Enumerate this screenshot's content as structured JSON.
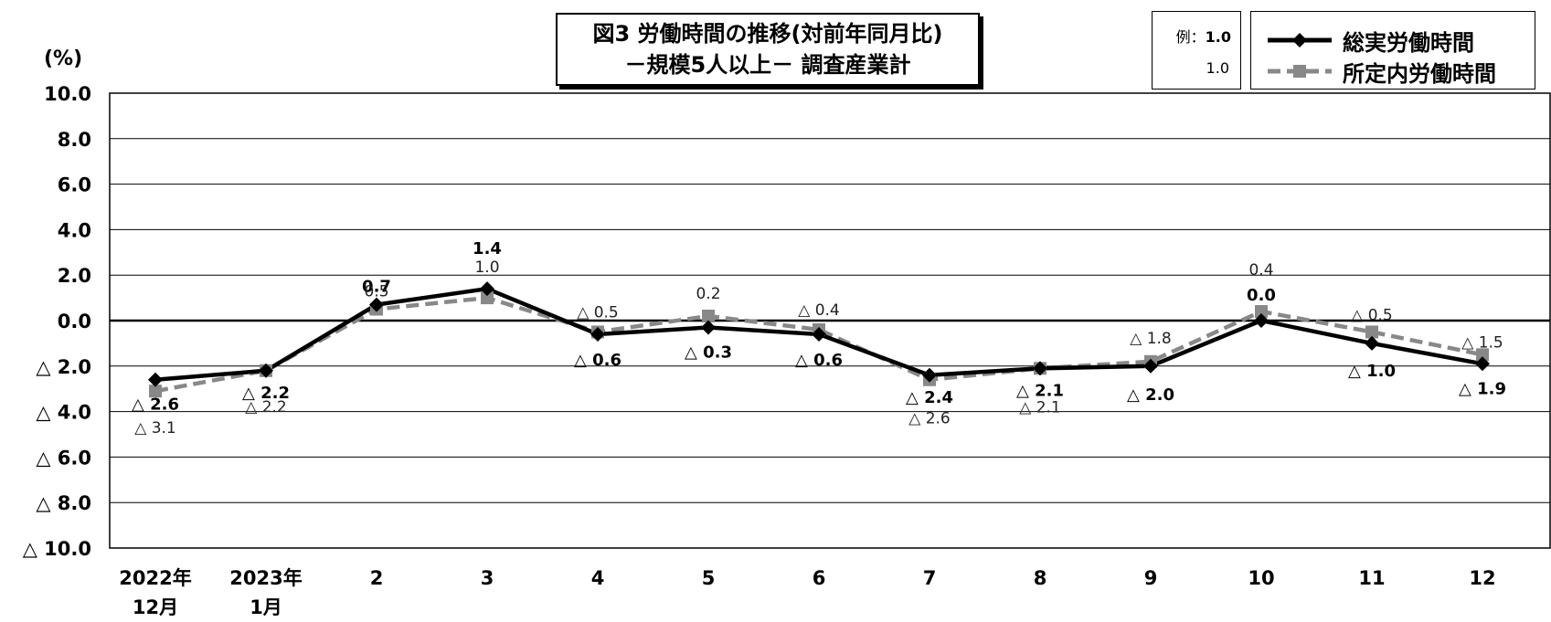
{
  "title_line1": "図3  労働時間の推移(対前年同月比)",
  "title_line2": "－規模5人以上－   調査産業計",
  "unit_label": "(%)",
  "example": {
    "label": "例：",
    "total_value": "1.0",
    "scheduled_value": "1.0"
  },
  "colors": {
    "total": "#000000",
    "scheduled": "#888888"
  },
  "chart_data": {
    "type": "line",
    "x_labels": [
      [
        "2022年",
        "12月"
      ],
      [
        "2023年",
        "1月"
      ],
      [
        "2"
      ],
      [
        "3"
      ],
      [
        "4"
      ],
      [
        "5"
      ],
      [
        "6"
      ],
      [
        "7"
      ],
      [
        "8"
      ],
      [
        "9"
      ],
      [
        "10"
      ],
      [
        "11"
      ],
      [
        "12"
      ]
    ],
    "y_ticks": [
      {
        "value": 10,
        "label": "10.0"
      },
      {
        "value": 8,
        "label": "8.0"
      },
      {
        "value": 6,
        "label": "6.0"
      },
      {
        "value": 4,
        "label": "4.0"
      },
      {
        "value": 2,
        "label": "2.0"
      },
      {
        "value": 0,
        "label": "0.0"
      },
      {
        "value": -2,
        "label": "△ 2.0"
      },
      {
        "value": -4,
        "label": "△ 4.0"
      },
      {
        "value": -6,
        "label": "△ 6.0"
      },
      {
        "value": -8,
        "label": "△ 8.0"
      },
      {
        "value": -10,
        "label": "△ 10.0"
      }
    ],
    "ylim": [
      -10,
      10
    ],
    "grid": true,
    "legend_position": "top-right",
    "series": [
      {
        "name": "総実労働時間",
        "style": "solid-diamond",
        "values": [
          -2.6,
          -2.2,
          0.7,
          1.4,
          -0.6,
          -0.3,
          -0.6,
          -2.4,
          -2.1,
          -2.0,
          0.0,
          -1.0,
          -1.9
        ],
        "labels": [
          "△ 2.6",
          "△ 2.2",
          "0.7",
          "1.4",
          "△ 0.6",
          "△ 0.3",
          "△ 0.6",
          "△ 2.4",
          "△ 2.1",
          "△ 2.0",
          "0.0",
          "△ 1.0",
          "△ 1.9"
        ]
      },
      {
        "name": "所定内労働時間",
        "style": "dashed-square",
        "values": [
          -3.1,
          -2.2,
          0.5,
          1.0,
          -0.5,
          0.2,
          -0.4,
          -2.6,
          -2.1,
          -1.8,
          0.4,
          -0.5,
          -1.5
        ],
        "labels": [
          "△ 3.1",
          "△ 2.2",
          "0.5",
          "1.0",
          "△ 0.5",
          "0.2",
          "△ 0.4",
          "△ 2.6",
          "△ 2.1",
          "△ 1.8",
          "0.4",
          "△ 0.5",
          "△ 1.5"
        ]
      }
    ]
  }
}
